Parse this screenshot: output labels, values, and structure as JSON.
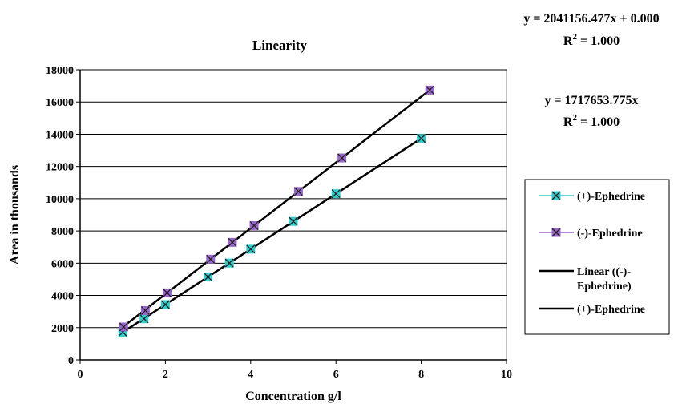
{
  "chart_data": {
    "type": "scatter",
    "title": "Linearity",
    "xlabel": "Concentration g/l",
    "ylabel": "Area in thousands",
    "xlim": [
      0,
      10
    ],
    "ylim": [
      0,
      18000
    ],
    "xticks": [
      "0",
      "2",
      "4",
      "6",
      "8",
      "10"
    ],
    "yticks": [
      "0",
      "2000",
      "4000",
      "6000",
      "8000",
      "10000",
      "12000",
      "14000",
      "16000",
      "18000"
    ],
    "grid": "horizontal",
    "legend_position": "right",
    "series": [
      {
        "name": "(+)-Ephedrine",
        "color": "#33cccc",
        "x": [
          1.0,
          1.5,
          2.0,
          3.0,
          3.5,
          4.0,
          5.0,
          6.0,
          8.0
        ],
        "y": [
          1720,
          2550,
          3430,
          5150,
          6010,
          6870,
          8590,
          10310,
          13740
        ]
      },
      {
        "name": "(-)-Ephedrine",
        "color": "#9966cc",
        "x": [
          1.02,
          1.53,
          2.04,
          3.06,
          3.57,
          4.08,
          5.12,
          6.14,
          8.2
        ],
        "y": [
          2040,
          3060,
          4160,
          6250,
          7290,
          8330,
          10450,
          12530,
          16740
        ]
      }
    ],
    "trendlines": [
      {
        "name": "Linear ((-)-Ephedrine)",
        "slope": 2041.156477,
        "intercept": 0,
        "x_range": [
          1.0,
          8.2
        ]
      },
      {
        "name": "(+)-Ephedrine",
        "slope": 1717.653775,
        "intercept": 0,
        "x_range": [
          1.0,
          8.0
        ]
      }
    ],
    "legend_entries": [
      {
        "label": "(+)-Ephedrine",
        "kind": "series",
        "color": "#33cccc"
      },
      {
        "label": "(-)-Ephedrine",
        "kind": "series",
        "color": "#9966cc"
      },
      {
        "label": "Linear ((-)-\nEphedrine)",
        "kind": "line",
        "color": "#000000"
      },
      {
        "label": "(+)-Ephedrine",
        "kind": "line",
        "color": "#000000"
      }
    ],
    "annotations": [
      {
        "eq": "y = 2041156.477x + 0.000",
        "r2_prefix": "R",
        "r2_sup": "2",
        "r2_value": " = 1.000"
      },
      {
        "eq": "y = 1717653.775x",
        "r2_prefix": "R",
        "r2_sup": "2",
        "r2_value": " = 1.000"
      }
    ]
  }
}
